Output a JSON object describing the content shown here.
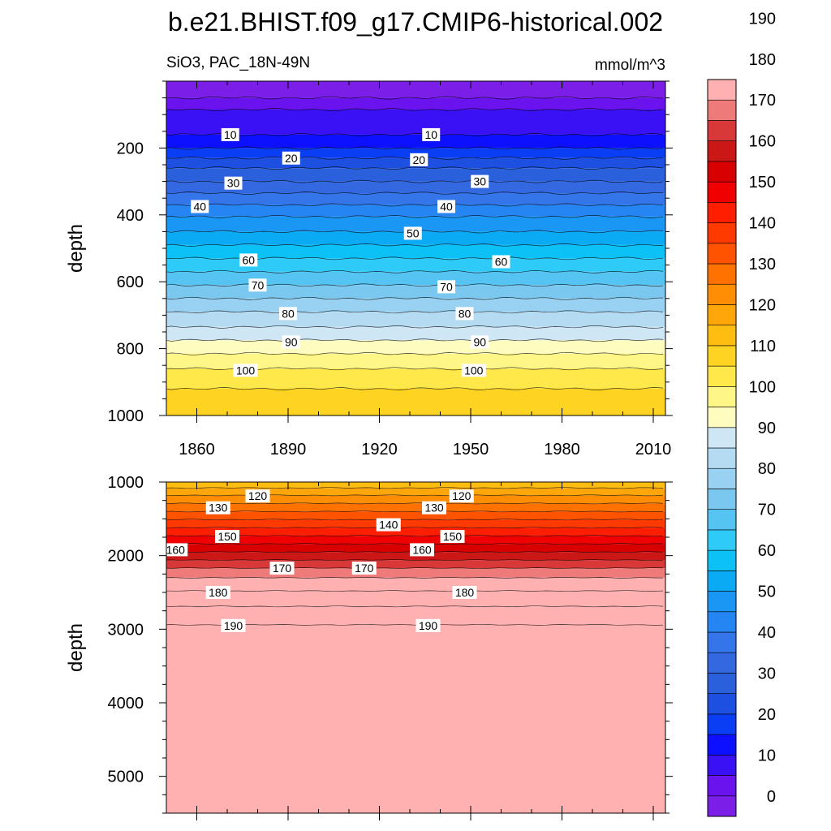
{
  "title": "b.e21.BHIST.f09_g17.CMIP6-historical.002",
  "chart_data": {
    "type": "heatmap",
    "title": "b.e21.BHIST.f09_g17.CMIP6-historical.002",
    "variable_label": "SiO3, PAC_18N-49N",
    "units_label": "mmol/m^3",
    "x": {
      "range": [
        1850,
        2014
      ],
      "ticks": [
        1860,
        1890,
        1920,
        1950,
        1980,
        2010
      ]
    },
    "panels": [
      {
        "name": "upper",
        "ylabel": "depth",
        "ylim": [
          0,
          1000
        ],
        "yticks": [
          200,
          400,
          600,
          800,
          1000
        ],
        "bands": [
          {
            "value": -5,
            "top": 0,
            "bottom": 50
          },
          {
            "value": 0,
            "top": 50,
            "bottom": 85
          },
          {
            "value": 5,
            "top": 85,
            "bottom": 160
          },
          {
            "value": 10,
            "top": 160,
            "bottom": 200
          },
          {
            "value": 15,
            "top": 200,
            "bottom": 230
          },
          {
            "value": 20,
            "top": 230,
            "bottom": 260
          },
          {
            "value": 25,
            "top": 260,
            "bottom": 300
          },
          {
            "value": 30,
            "top": 300,
            "bottom": 335
          },
          {
            "value": 35,
            "top": 335,
            "bottom": 370
          },
          {
            "value": 40,
            "top": 370,
            "bottom": 405
          },
          {
            "value": 45,
            "top": 405,
            "bottom": 450
          },
          {
            "value": 50,
            "top": 450,
            "bottom": 490
          },
          {
            "value": 55,
            "top": 490,
            "bottom": 530
          },
          {
            "value": 60,
            "top": 530,
            "bottom": 570
          },
          {
            "value": 65,
            "top": 570,
            "bottom": 610
          },
          {
            "value": 70,
            "top": 610,
            "bottom": 650
          },
          {
            "value": 75,
            "top": 650,
            "bottom": 690
          },
          {
            "value": 80,
            "top": 690,
            "bottom": 735
          },
          {
            "value": 85,
            "top": 735,
            "bottom": 775
          },
          {
            "value": 90,
            "top": 775,
            "bottom": 815
          },
          {
            "value": 95,
            "top": 815,
            "bottom": 860
          },
          {
            "value": 100,
            "top": 860,
            "bottom": 920
          },
          {
            "value": 105,
            "top": 920,
            "bottom": 1000
          }
        ],
        "contour_labels": [
          {
            "text": "10",
            "year": 1871,
            "depth": 160
          },
          {
            "text": "10",
            "year": 1937,
            "depth": 160
          },
          {
            "text": "20",
            "year": 1891,
            "depth": 230
          },
          {
            "text": "20",
            "year": 1933,
            "depth": 235
          },
          {
            "text": "30",
            "year": 1872,
            "depth": 305
          },
          {
            "text": "30",
            "year": 1953,
            "depth": 300
          },
          {
            "text": "40",
            "year": 1861,
            "depth": 375
          },
          {
            "text": "40",
            "year": 1942,
            "depth": 375
          },
          {
            "text": "50",
            "year": 1931,
            "depth": 455
          },
          {
            "text": "60",
            "year": 1877,
            "depth": 535
          },
          {
            "text": "60",
            "year": 1960,
            "depth": 540
          },
          {
            "text": "70",
            "year": 1880,
            "depth": 610
          },
          {
            "text": "70",
            "year": 1942,
            "depth": 615
          },
          {
            "text": "80",
            "year": 1890,
            "depth": 695
          },
          {
            "text": "80",
            "year": 1948,
            "depth": 695
          },
          {
            "text": "90",
            "year": 1891,
            "depth": 780
          },
          {
            "text": "90",
            "year": 1953,
            "depth": 780
          },
          {
            "text": "100",
            "year": 1876,
            "depth": 865
          },
          {
            "text": "100",
            "year": 1951,
            "depth": 865
          }
        ]
      },
      {
        "name": "lower",
        "ylabel": "depth",
        "ylim": [
          1000,
          5500
        ],
        "yticks": [
          1000,
          2000,
          3000,
          4000,
          5000
        ],
        "bands": [
          {
            "value": 112,
            "top": 1000,
            "bottom": 1080
          },
          {
            "value": 117,
            "top": 1080,
            "bottom": 1180
          },
          {
            "value": 122,
            "top": 1180,
            "bottom": 1290
          },
          {
            "value": 127,
            "top": 1290,
            "bottom": 1400
          },
          {
            "value": 132,
            "top": 1400,
            "bottom": 1510
          },
          {
            "value": 137,
            "top": 1510,
            "bottom": 1620
          },
          {
            "value": 142,
            "top": 1620,
            "bottom": 1730
          },
          {
            "value": 147,
            "top": 1730,
            "bottom": 1840
          },
          {
            "value": 152,
            "top": 1840,
            "bottom": 1950
          },
          {
            "value": 157,
            "top": 1950,
            "bottom": 2060
          },
          {
            "value": 162,
            "top": 2060,
            "bottom": 2170
          },
          {
            "value": 167,
            "top": 2170,
            "bottom": 2300
          },
          {
            "value": 172,
            "top": 2300,
            "bottom": 2480
          },
          {
            "value": 177,
            "top": 2480,
            "bottom": 2690
          },
          {
            "value": 182,
            "top": 2690,
            "bottom": 2940
          },
          {
            "value": 187,
            "top": 2940,
            "bottom": 5500
          }
        ],
        "contour_labels": [
          {
            "text": "120",
            "year": 1880,
            "depth": 1190
          },
          {
            "text": "120",
            "year": 1947,
            "depth": 1190
          },
          {
            "text": "130",
            "year": 1867,
            "depth": 1350
          },
          {
            "text": "130",
            "year": 1938,
            "depth": 1350
          },
          {
            "text": "140",
            "year": 1923,
            "depth": 1580
          },
          {
            "text": "150",
            "year": 1870,
            "depth": 1740
          },
          {
            "text": "150",
            "year": 1944,
            "depth": 1740
          },
          {
            "text": "160",
            "year": 1853,
            "depth": 1920
          },
          {
            "text": "160",
            "year": 1934,
            "depth": 1920
          },
          {
            "text": "170",
            "year": 1888,
            "depth": 2170
          },
          {
            "text": "170",
            "year": 1915,
            "depth": 2170
          },
          {
            "text": "180",
            "year": 1867,
            "depth": 2500
          },
          {
            "text": "180",
            "year": 1948,
            "depth": 2500
          },
          {
            "text": "190",
            "year": 1872,
            "depth": 2950
          },
          {
            "text": "190",
            "year": 1936,
            "depth": 2950
          }
        ]
      }
    ],
    "colorbar": {
      "min": -5,
      "step": 5,
      "labels": [
        0,
        10,
        20,
        30,
        40,
        50,
        60,
        70,
        80,
        90,
        100,
        110,
        120,
        130,
        140,
        150,
        160,
        170,
        180,
        190
      ],
      "colors": [
        "#7b1fe8",
        "#6a13ee",
        "#3a10f4",
        "#0d10ff",
        "#0a3ef4",
        "#1d4fe0",
        "#2b60dc",
        "#3368e0",
        "#3476ea",
        "#2585f2",
        "#1a97f4",
        "#0aaaf4",
        "#0cc1f6",
        "#2ecbf8",
        "#56c4f3",
        "#7ac8f0",
        "#98d1f1",
        "#b4dbf2",
        "#cfe6f4",
        "#fffcc0",
        "#fff688",
        "#ffe84a",
        "#ffd321",
        "#ffbd12",
        "#ffa60b",
        "#ff8e05",
        "#ff7200",
        "#ff5300",
        "#ff3a00",
        "#ff1f00",
        "#f00000",
        "#d80000",
        "#cc1717",
        "#d83838",
        "#ef7a7a",
        "#ffb0b0"
      ]
    }
  }
}
